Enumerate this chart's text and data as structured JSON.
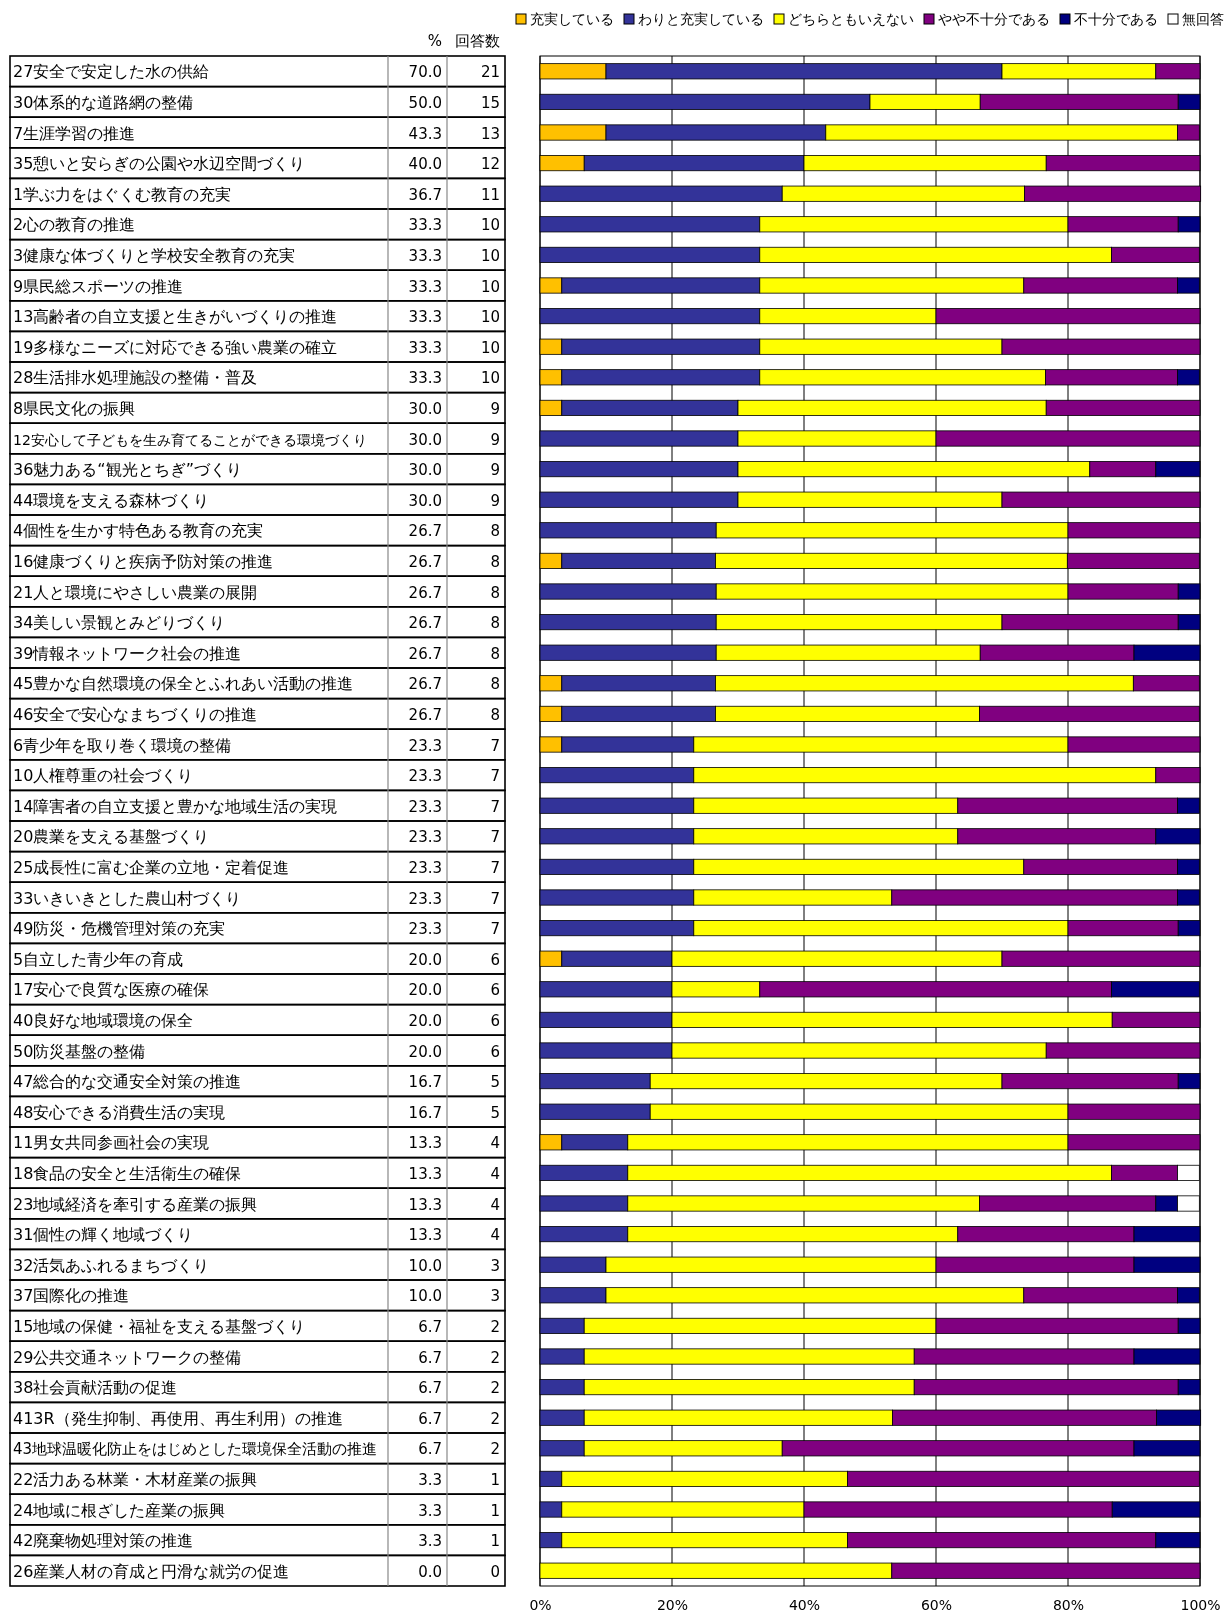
{
  "chart_data": [
    {
      "type": "other",
      "categories": [
        "27安全で安定した水の供給",
        "30体系的な道路網の整備",
        "7生涯学習の推進",
        "35憩いと安らぎの公園や水辺空間づくり",
        "1学ぶ力をはぐくむ教育の充実",
        "2心の教育の推進",
        "3健康な体づくりと学校安全教育の充実",
        "9県民総スポーツの推進",
        "13高齢者の自立支援と生きがいづくりの推進",
        "19多様なニーズに対応できる強い農業の確立",
        "28生活排水処理施設の整備・普及",
        "8県民文化の振興",
        "12安心して子どもを生み育てることができる環境づくり",
        "36魅力ある“観光とちぎ”づくり",
        "44環境を支える森林づくり",
        "4個性を生かす特色ある教育の充実",
        "16健康づくりと疾病予防対策の推進",
        "21人と環境にやさしい農業の展開",
        "34美しい景観とみどりづくり",
        "39情報ネットワーク社会の推進",
        "45豊かな自然環境の保全とふれあい活動の推進",
        "46安全で安心なまちづくりの推進",
        "6青少年を取り巻く環境の整備",
        "10人権尊重の社会づくり",
        "14障害者の自立支援と豊かな地域生活の実現",
        "20農業を支える基盤づくり",
        "25成長性に富む企業の立地・定着促進",
        "33いきいきとした農山村づくり",
        "49防災・危機管理対策の充実",
        "5自立した青少年の育成",
        "17安心で良質な医療の確保",
        "40良好な地域環境の保全",
        "50防災基盤の整備",
        "47総合的な交通安全対策の推進",
        "48安心できる消費生活の実現",
        "11男女共同参画社会の実現",
        "18食品の安全と生活衛生の確保",
        "23地域経済を牽引する産業の振興",
        "31個性の輝く地域づくり",
        "32活気あふれるまちづくり",
        "37国際化の推進",
        "15地域の保健・福祉を支える基盤づくり",
        "29公共交通ネットワークの整備",
        "38社会貢献活動の促進",
        "413R（発生抑制、再使用、再生利用）の推進",
        "43地球温暖化防止をはじめとした環境保全活動の推進",
        "22活力ある林業・木材産業の振興",
        "24地域に根ざした産業の振興",
        "42廃棄物処理対策の推進",
        "26産業人材の育成と円滑な就労の促進"
      ],
      "series": [
        {
          "name": "%",
          "values": [
            70.0,
            50.0,
            43.3,
            40.0,
            36.7,
            33.3,
            33.3,
            33.3,
            33.3,
            33.3,
            33.3,
            30.0,
            30.0,
            30.0,
            30.0,
            26.7,
            26.7,
            26.7,
            26.7,
            26.7,
            26.7,
            26.7,
            23.3,
            23.3,
            23.3,
            23.3,
            23.3,
            23.3,
            23.3,
            20.0,
            20.0,
            20.0,
            20.0,
            16.7,
            16.7,
            13.3,
            13.3,
            13.3,
            13.3,
            10.0,
            10.0,
            6.7,
            6.7,
            6.7,
            6.7,
            6.7,
            3.3,
            3.3,
            3.3,
            0.0
          ],
          "value_labels": [
            "70.0",
            "50.0",
            "43.3",
            "40.0",
            "36.7",
            "33.3",
            "33.3",
            "33.3",
            "33.3",
            "33.3",
            "33.3",
            "30.0",
            "30.0",
            "30.0",
            "30.0",
            "26.7",
            "26.7",
            "26.7",
            "26.7",
            "26.7",
            "26.7",
            "26.7",
            "23.3",
            "23.3",
            "23.3",
            "23.3",
            "23.3",
            "23.3",
            "23.3",
            "20.0",
            "20.0",
            "20.0",
            "20.0",
            "16.7",
            "16.7",
            "13.3",
            "13.3",
            "13.3",
            "13.3",
            "10.0",
            "10.0",
            "6.7",
            "6.7",
            "6.7",
            "6.7",
            "6.7",
            "3.3",
            "3.3",
            "3.3",
            "0.0"
          ]
        },
        {
          "name": "回答数",
          "values": [
            21,
            15,
            13,
            12,
            11,
            10,
            10,
            10,
            10,
            10,
            10,
            9,
            9,
            9,
            9,
            8,
            8,
            8,
            8,
            8,
            8,
            8,
            7,
            7,
            7,
            7,
            7,
            7,
            7,
            6,
            6,
            6,
            6,
            5,
            5,
            4,
            4,
            4,
            4,
            3,
            3,
            2,
            2,
            2,
            2,
            2,
            1,
            1,
            1,
            0
          ],
          "value_labels": [
            "21",
            "15",
            "13",
            "12",
            "11",
            "10",
            "10",
            "10",
            "10",
            "10",
            "10",
            "9",
            "9",
            "9",
            "9",
            "8",
            "8",
            "8",
            "8",
            "8",
            "8",
            "8",
            "7",
            "7",
            "7",
            "7",
            "7",
            "7",
            "7",
            "6",
            "6",
            "6",
            "6",
            "5",
            "5",
            "4",
            "4",
            "4",
            "4",
            "3",
            "3",
            "2",
            "2",
            "2",
            "2",
            "2",
            "1",
            "1",
            "1",
            "0"
          ]
        }
      ]
    },
    {
      "type": "bar",
      "orientation": "horizontal",
      "stacked": true,
      "categories": [
        null,
        null,
        null,
        null,
        null,
        null,
        null,
        null,
        null,
        null,
        null,
        null,
        null,
        null,
        null,
        null,
        null,
        null,
        null,
        null,
        null,
        null,
        null,
        null,
        null,
        null,
        null,
        null,
        null,
        null,
        null,
        null,
        null,
        null,
        null,
        null,
        null,
        null,
        null,
        null,
        null,
        null,
        null,
        null,
        null,
        null,
        null,
        null,
        null,
        null
      ],
      "series": [
        {
          "name": "充実している",
          "color": "#ffc000",
          "values": [
            10.0,
            0,
            10.0,
            6.7,
            0,
            0,
            0,
            3.3,
            0,
            3.3,
            3.3,
            3.3,
            0,
            0,
            0,
            0,
            3.3,
            0,
            0,
            0,
            3.3,
            3.3,
            3.3,
            0,
            0,
            0,
            0,
            0,
            0,
            3.3,
            0,
            0,
            0,
            0,
            0,
            3.3,
            0,
            0,
            0,
            0,
            0,
            0,
            0,
            0,
            0,
            0,
            0,
            0,
            0,
            0
          ]
        },
        {
          "name": "わりと充実している",
          "color": "#333399",
          "values": [
            60.0,
            50.0,
            33.3,
            33.3,
            36.7,
            33.3,
            33.3,
            30.0,
            33.3,
            30.0,
            30.0,
            26.7,
            30.0,
            30.0,
            30.0,
            26.7,
            23.3,
            26.7,
            26.7,
            26.7,
            23.3,
            23.3,
            20.0,
            23.3,
            23.3,
            23.3,
            23.3,
            23.3,
            23.3,
            16.7,
            20.0,
            20.0,
            20.0,
            16.7,
            16.7,
            10.0,
            13.3,
            13.3,
            13.3,
            10.0,
            10.0,
            6.7,
            6.7,
            6.7,
            6.7,
            6.7,
            3.3,
            3.3,
            3.3,
            0
          ]
        },
        {
          "name": "どちらともいえない",
          "color": "#ffff00",
          "values": [
            23.3,
            16.7,
            53.3,
            36.7,
            36.7,
            46.7,
            53.3,
            40.0,
            26.7,
            36.7,
            43.3,
            46.7,
            30.0,
            53.3,
            40.0,
            53.3,
            53.3,
            53.3,
            43.3,
            40.0,
            63.3,
            40.0,
            56.7,
            70.0,
            40.0,
            40.0,
            50.0,
            30.0,
            56.7,
            50.0,
            13.3,
            66.7,
            56.7,
            53.3,
            63.3,
            66.7,
            73.3,
            53.3,
            50.0,
            50.0,
            63.3,
            53.3,
            50.0,
            50.0,
            46.7,
            30.0,
            43.3,
            36.7,
            43.3,
            53.3
          ]
        },
        {
          "name": "やや不十分である",
          "color": "#800080",
          "values": [
            6.7,
            30.0,
            3.3,
            23.3,
            26.7,
            16.7,
            13.3,
            23.3,
            40.0,
            30.0,
            20.0,
            23.3,
            40.0,
            10.0,
            30.0,
            20.0,
            20.0,
            16.7,
            26.7,
            23.3,
            10.0,
            33.3,
            20.0,
            6.7,
            33.3,
            30.0,
            23.3,
            43.3,
            16.7,
            30.0,
            53.3,
            13.3,
            23.3,
            26.7,
            20.0,
            20.0,
            10.0,
            26.7,
            26.7,
            30.0,
            23.3,
            36.7,
            33.3,
            40.0,
            40.0,
            53.3,
            53.3,
            46.7,
            46.7,
            46.7
          ]
        },
        {
          "name": "不十分である",
          "color": "#000080",
          "values": [
            0,
            3.3,
            0,
            0,
            0,
            3.3,
            0,
            3.3,
            0,
            0,
            3.3,
            0,
            0,
            6.7,
            0,
            0,
            0,
            3.3,
            3.3,
            10.0,
            0,
            0,
            0,
            0,
            3.3,
            6.7,
            3.3,
            3.3,
            3.3,
            0,
            13.3,
            0,
            0,
            3.3,
            0,
            0,
            0,
            3.3,
            10.0,
            10.0,
            3.3,
            3.3,
            10.0,
            3.3,
            6.7,
            10.0,
            0,
            13.3,
            6.7,
            0
          ]
        },
        {
          "name": "無回答",
          "color": "#ffffff",
          "values": [
            0,
            0,
            0,
            0,
            0,
            0,
            0,
            0,
            0,
            0,
            0,
            0,
            0,
            0,
            0,
            0,
            0,
            0,
            0,
            0,
            0,
            0,
            0,
            0,
            0,
            0,
            0,
            0,
            0,
            0,
            0,
            0,
            0,
            0,
            0,
            0,
            3.3,
            3.3,
            0,
            0,
            0,
            0,
            0,
            0,
            0,
            0,
            0,
            0,
            0,
            0
          ]
        }
      ],
      "xlim": [
        0,
        100
      ],
      "xticks": [
        {
          "value": 0,
          "label": "0%"
        },
        {
          "value": 20,
          "label": "20%"
        },
        {
          "value": 40,
          "label": "40%"
        },
        {
          "value": 60,
          "label": "60%"
        },
        {
          "value": 80,
          "label": "80%"
        },
        {
          "value": 100,
          "label": "100%"
        }
      ],
      "grid": "x",
      "legend": "top",
      "tick_labels": "x"
    }
  ]
}
